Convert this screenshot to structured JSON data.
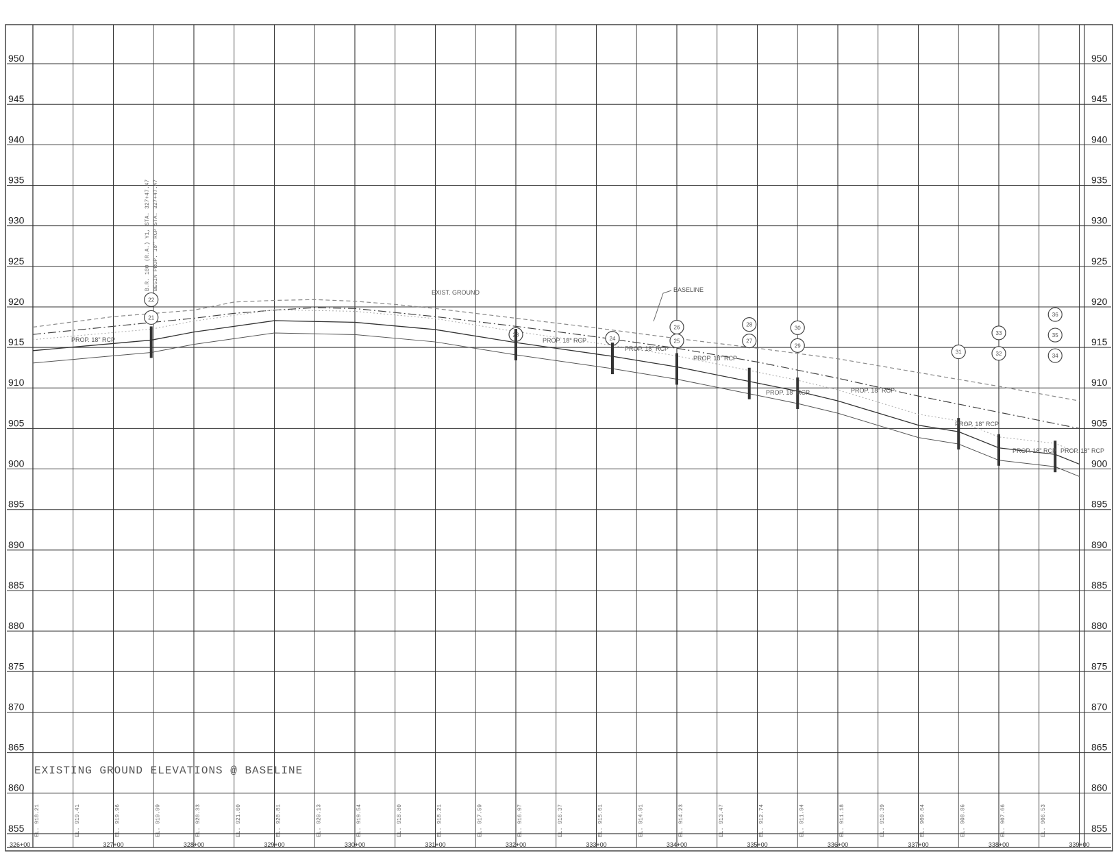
{
  "sheet": {
    "elevations": [
      950,
      945,
      940,
      935,
      930,
      925,
      920,
      915,
      910,
      905,
      900,
      895,
      890,
      885,
      880,
      875,
      870,
      865,
      860,
      855
    ],
    "stations": [
      "326+00",
      "327+00",
      "328+00",
      "329+00",
      "330+00",
      "331+00",
      "332+00",
      "333+00",
      "334+00",
      "335+00",
      "336+00",
      "337+00",
      "338+00",
      "339+00"
    ],
    "station_values": [
      326,
      327,
      328,
      329,
      330,
      331,
      332,
      333,
      334,
      335,
      336,
      337,
      338,
      339
    ]
  },
  "labels": {
    "exist_ground": "EXIST. GROUND",
    "baseline": "BASELINE",
    "pipe_1": "PROP. 18\" RCP",
    "pipe_2": "PROP. 18\" RCP",
    "pipe_3": "PROP. 18\" RCP",
    "pipe_4": "PROP. 18\" RCP",
    "pipe_5": "PROP. 18\" RCP",
    "pipe_6": "PROP. 18\" RCP",
    "pipe_7": "PROP. 18\" RCP",
    "pipe_8": "PROP. 18\" RCP",
    "pipe_9": "PROP. 18\" RCP",
    "vertical_note": "B.R. 100 (R.A.) Y1, STA. 327+47.47",
    "vertical_note_2": "BEGIN PROP. 18\" RCP STA. 327+47.47",
    "existing_ground_title": "EXISTING GROUND ELEVATIONS @ BASELINE"
  },
  "structures": [
    "21",
    "22",
    "23",
    "24",
    "25",
    "26",
    "27",
    "28",
    "29",
    "30",
    "31",
    "32",
    "33",
    "34",
    "35",
    "36"
  ],
  "ground_elevations": [
    "EL. 918.21",
    "EL. 919.41",
    "EL. 919.96",
    "EL. 919.99",
    "EL. 920.33",
    "EL. 921.00",
    "EL. 920.81",
    "EL. 920.13",
    "EL. 919.54",
    "EL. 918.80",
    "EL. 918.21",
    "EL. 917.59",
    "EL. 916.97",
    "EL. 916.37",
    "EL. 915.61",
    "EL. 914.91",
    "EL. 914.23",
    "EL. 913.47",
    "EL. 912.74",
    "EL. 911.94",
    "EL. 911.18",
    "EL. 910.39",
    "EL. 909.64",
    "EL. 908.86",
    "EL. 907.66",
    "EL. 906.53"
  ],
  "chart_data": {
    "type": "line",
    "title": "",
    "xlabel": "",
    "ylabel": "",
    "x_ticks": [
      "326+00",
      "327+00",
      "328+00",
      "329+00",
      "330+00",
      "331+00",
      "332+00",
      "333+00",
      "334+00",
      "335+00",
      "336+00",
      "337+00",
      "338+00",
      "339+00"
    ],
    "y_ticks": [
      950,
      945,
      940,
      935,
      930,
      925,
      920,
      915,
      910,
      905,
      900,
      895,
      890,
      885,
      880,
      875,
      870,
      865,
      860,
      855
    ],
    "xlim": [
      326,
      339
    ],
    "ylim": [
      855,
      953
    ],
    "series": [
      {
        "name": "EXIST. GROUND",
        "x": [
          326,
          327,
          328,
          328.5,
          329,
          329.5,
          330,
          330.5,
          331,
          332,
          333,
          334,
          335,
          336,
          337,
          338,
          339
        ],
        "y": [
          917.5,
          918.8,
          919.6,
          920.6,
          920.8,
          920.9,
          920.7,
          920.3,
          919.8,
          918.6,
          917.4,
          916.1,
          914.9,
          913.6,
          911.9,
          910.2,
          908.4
        ]
      },
      {
        "name": "BASELINE",
        "x": [
          326,
          327,
          328,
          328.5,
          329,
          329.5,
          330,
          331,
          332,
          333,
          334,
          335,
          336,
          337,
          338,
          339
        ],
        "y": [
          916.6,
          917.6,
          918.6,
          919.2,
          919.6,
          919.9,
          919.8,
          918.8,
          917.6,
          916.3,
          914.9,
          913.2,
          911.2,
          909.0,
          907.0,
          905.0
        ]
      },
      {
        "name": "PROP. 18\" RCP",
        "x": [
          326,
          327.47,
          328,
          329,
          330,
          331,
          332,
          333.2,
          334,
          334.9,
          335.5,
          336,
          337,
          337.5,
          338,
          338.7,
          339
        ],
        "y": [
          914.6,
          915.9,
          916.9,
          918.3,
          918.1,
          917.2,
          915.6,
          913.9,
          912.6,
          910.8,
          909.6,
          908.4,
          905.4,
          904.6,
          902.6,
          901.8,
          900.6
        ]
      }
    ]
  }
}
